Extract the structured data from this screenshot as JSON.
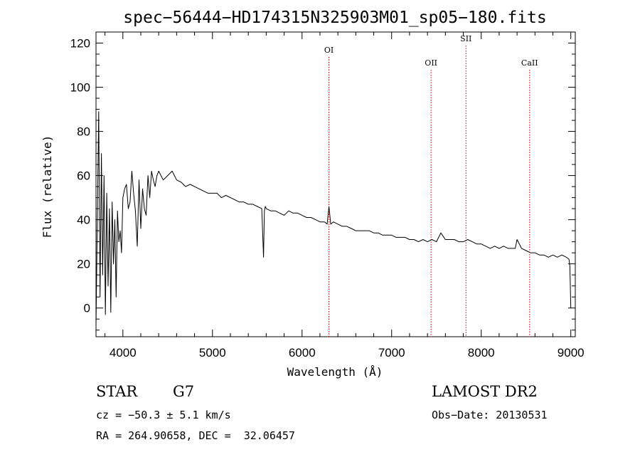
{
  "chart_data": {
    "type": "line",
    "title": "spec−56444−HD174315N325903M01_sp05−180.fits",
    "xlabel": "Wavelength (Å)",
    "ylabel": "Flux (relative)",
    "xlim": [
      3700,
      9050
    ],
    "ylim": [
      -13,
      125
    ],
    "xticks": [
      4000,
      5000,
      6000,
      7000,
      8000,
      9000
    ],
    "yticks": [
      0,
      20,
      40,
      60,
      80,
      100,
      120
    ],
    "grid": false,
    "series": [
      {
        "color": "#000000",
        "x": [
          3700,
          3715,
          3730,
          3745,
          3760,
          3775,
          3790,
          3805,
          3820,
          3835,
          3850,
          3865,
          3880,
          3895,
          3910,
          3925,
          3940,
          3955,
          3970,
          3985,
          4000,
          4020,
          4040,
          4060,
          4080,
          4100,
          4120,
          4140,
          4160,
          4180,
          4200,
          4220,
          4240,
          4260,
          4280,
          4300,
          4320,
          4340,
          4360,
          4380,
          4400,
          4450,
          4500,
          4550,
          4600,
          4650,
          4700,
          4750,
          4800,
          4850,
          4900,
          4950,
          5000,
          5050,
          5100,
          5150,
          5200,
          5250,
          5300,
          5350,
          5400,
          5450,
          5500,
          5550,
          5570,
          5580,
          5590,
          5600,
          5650,
          5700,
          5750,
          5800,
          5850,
          5900,
          5950,
          6000,
          6050,
          6100,
          6150,
          6200,
          6250,
          6280,
          6300,
          6320,
          6350,
          6400,
          6450,
          6500,
          6550,
          6600,
          6650,
          6700,
          6750,
          6800,
          6850,
          6900,
          6950,
          7000,
          7050,
          7100,
          7150,
          7200,
          7250,
          7300,
          7350,
          7400,
          7450,
          7500,
          7550,
          7600,
          7650,
          7700,
          7750,
          7800,
          7850,
          7900,
          7950,
          8000,
          8050,
          8100,
          8150,
          8200,
          8250,
          8300,
          8350,
          8380,
          8400,
          8450,
          8500,
          8550,
          8600,
          8650,
          8700,
          8750,
          8800,
          8850,
          8900,
          8950,
          8980,
          8990,
          9000
        ],
        "y": [
          -8,
          40,
          89,
          5,
          70,
          15,
          60,
          -3,
          52,
          10,
          45,
          -2,
          48,
          20,
          40,
          5,
          44,
          30,
          35,
          25,
          50,
          54,
          56,
          45,
          48,
          62,
          52,
          44,
          28,
          58,
          36,
          54,
          45,
          42,
          60,
          50,
          62,
          58,
          55,
          60,
          62,
          58,
          60,
          62,
          58,
          57,
          55,
          56,
          55,
          54,
          53,
          52,
          52,
          52,
          50,
          51,
          50,
          49,
          48,
          48,
          47,
          47,
          46,
          45,
          23,
          44,
          46,
          45,
          44,
          44,
          43,
          42,
          44,
          43,
          43,
          42,
          41,
          41,
          40,
          39,
          39,
          38,
          46,
          38,
          39,
          38,
          37,
          37,
          36,
          35,
          35,
          35,
          35,
          34,
          34,
          33,
          33,
          33,
          32,
          32,
          32,
          31,
          31,
          30,
          31,
          30,
          31,
          30,
          34,
          31,
          31,
          31,
          30,
          30,
          31,
          30,
          29,
          29,
          28,
          27,
          28,
          27,
          28,
          27,
          27,
          27,
          31,
          27,
          26,
          25,
          25,
          24,
          24,
          23,
          24,
          23,
          24,
          23,
          22,
          19,
          0
        ]
      }
    ],
    "spectral_lines": [
      {
        "label": "OI",
        "x": 6300
      },
      {
        "label": "OII",
        "x": 7440
      },
      {
        "label": "SII",
        "x": 7830
      },
      {
        "label": "CaII",
        "x": 8540
      }
    ],
    "line_color": "#cc0000"
  },
  "info": {
    "object_type": "STAR",
    "subclass": "G7",
    "survey": "LAMOST DR2",
    "cz": "cz = −50.3 ± 5.1 km/s",
    "obs_date": "Obs−Date: 20130531",
    "coords": "RA = 264.90658, DEC =  32.06457"
  }
}
